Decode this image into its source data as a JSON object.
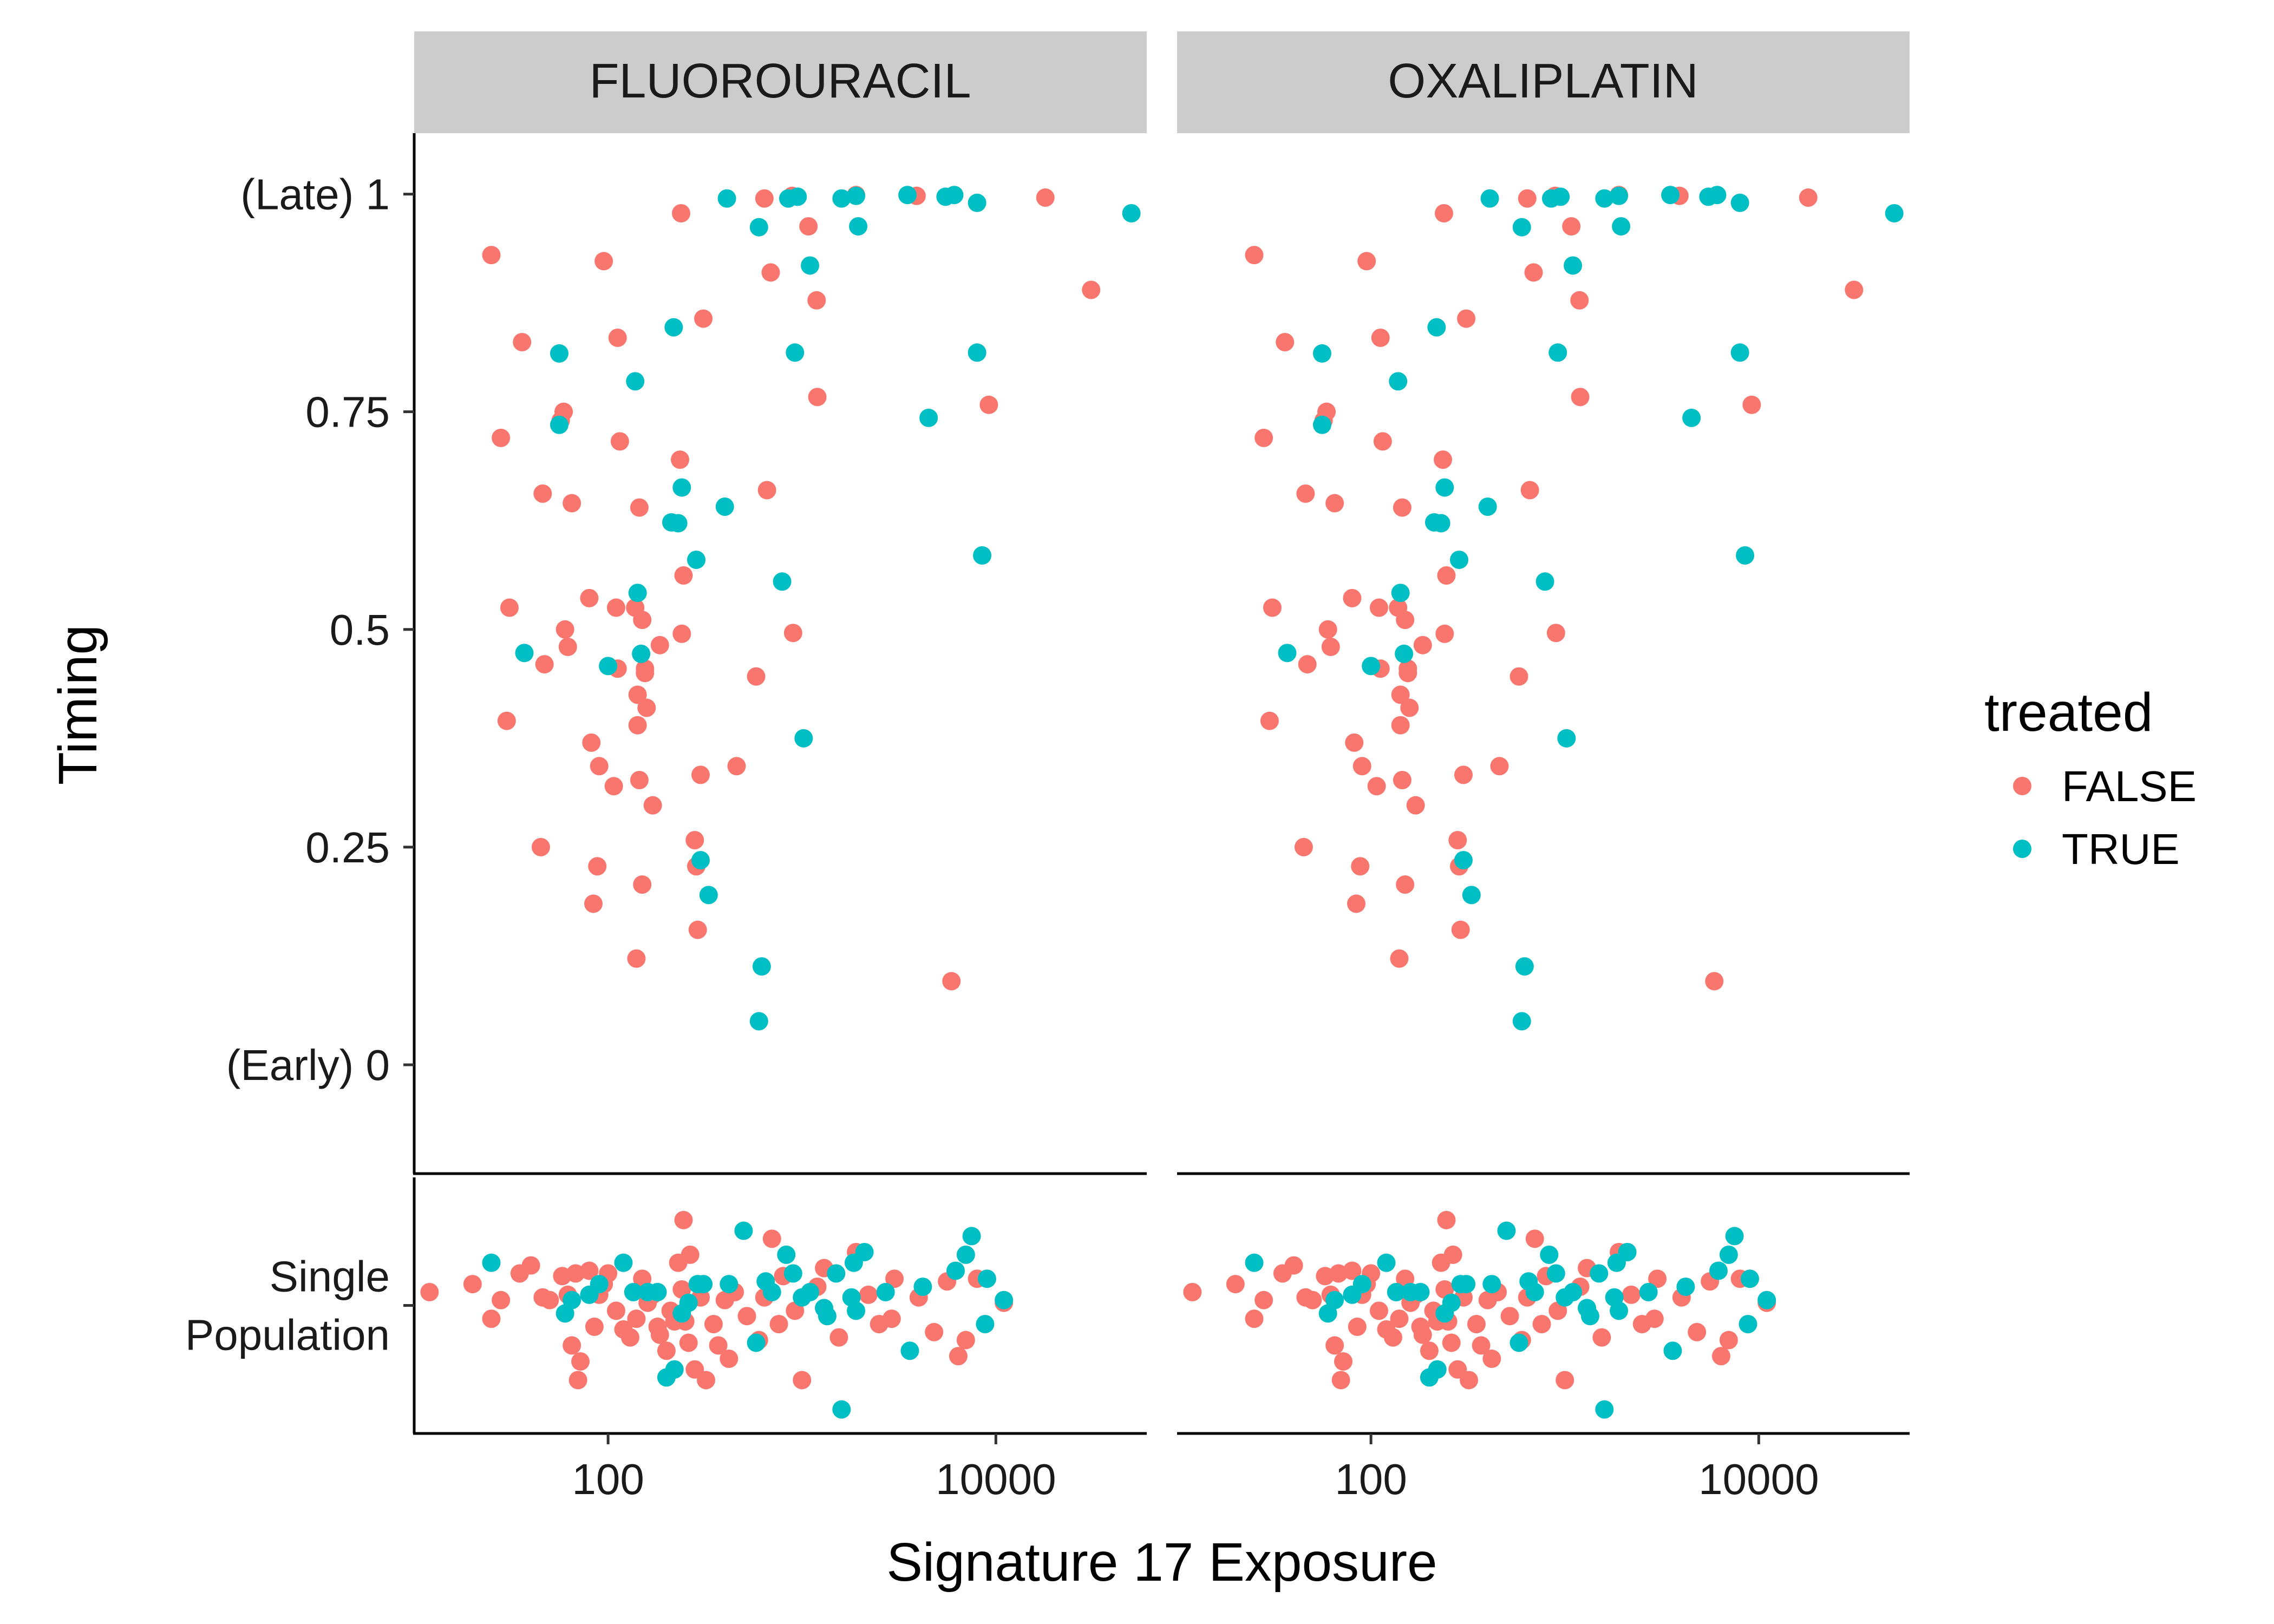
{
  "chart_data": {
    "type": "scatter",
    "facets": [
      "FLUOROURACIL",
      "OXALIPLATIN"
    ],
    "xlabel": "Signature 17 Exposure",
    "ylabel": "Timing",
    "x_scale": "log10",
    "x_ticks": [
      100,
      10000
    ],
    "x_tick_labels": [
      "100",
      "10000"
    ],
    "xlim": [
      10,
      60000
    ],
    "timing_panel": {
      "ylim": [
        -0.125,
        1.07
      ],
      "y_ticks": [
        0,
        0.25,
        0.5,
        0.75,
        1
      ],
      "y_tick_labels": [
        "(Early) 0",
        "0.25",
        "0.5",
        "0.75",
        "(Late) 1"
      ]
    },
    "single_panel": {
      "category_label": "Single\nPopulation",
      "y_center": 0,
      "ylim": [
        -0.48,
        0.48
      ]
    },
    "legend": {
      "title": "treated",
      "placement": "right",
      "entries": [
        {
          "label": "FALSE",
          "color": "#F8766D"
        },
        {
          "label": "TRUE",
          "color": "#00BFC4"
        }
      ]
    },
    "colors": {
      "FALSE": "#F8766D",
      "TRUE": "#00BFC4",
      "strip_background": "#CCCCCC"
    },
    "series": [
      {
        "name": "FALSE",
        "color": "#F8766D",
        "timing_points": [
          [
            25,
            0.93
          ],
          [
            36,
            0.83
          ],
          [
            28,
            0.72
          ],
          [
            59,
            0.75
          ],
          [
            57,
            0.74
          ],
          [
            31,
            0.525
          ],
          [
            30,
            0.395
          ],
          [
            46,
            0.656
          ],
          [
            45,
            0.25
          ],
          [
            47,
            0.46
          ],
          [
            95,
            0.923
          ],
          [
            112,
            0.835
          ],
          [
            115,
            0.716
          ],
          [
            65,
            0.645
          ],
          [
            60,
            0.5
          ],
          [
            62,
            0.48
          ],
          [
            80,
            0.536
          ],
          [
            82,
            0.37
          ],
          [
            90,
            0.343
          ],
          [
            84,
            0.185
          ],
          [
            88,
            0.228
          ],
          [
            107,
            0.32
          ],
          [
            110,
            0.525
          ],
          [
            112,
            0.455
          ],
          [
            138,
            0.525
          ],
          [
            150,
            0.511
          ],
          [
            145,
            0.64
          ],
          [
            142,
            0.39
          ],
          [
            142,
            0.425
          ],
          [
            158,
            0.41
          ],
          [
            145,
            0.327
          ],
          [
            150,
            0.207
          ],
          [
            140,
            0.122
          ],
          [
            170,
            0.298
          ],
          [
            238,
            0.978
          ],
          [
            235,
            0.695
          ],
          [
            245,
            0.562
          ],
          [
            240,
            0.495
          ],
          [
            185,
            0.482
          ],
          [
            155,
            0.455
          ],
          [
            155,
            0.45
          ],
          [
            310,
            0.857
          ],
          [
            300,
            0.333
          ],
          [
            280,
            0.258
          ],
          [
            285,
            0.228
          ],
          [
            290,
            0.155
          ],
          [
            460,
            0.343
          ],
          [
            640,
            0.995
          ],
          [
            890,
            0.998
          ],
          [
            1080,
            0.963
          ],
          [
            690,
            0.91
          ],
          [
            660,
            0.66
          ],
          [
            900,
            0.496
          ],
          [
            1190,
            0.878
          ],
          [
            1200,
            0.767
          ],
          [
            580,
            0.446
          ],
          [
            1900,
            0.999
          ],
          [
            3900,
            0.998
          ],
          [
            18000,
            0.996
          ],
          [
            31000,
            0.89
          ],
          [
            9200,
            0.758
          ],
          [
            5900,
            0.096
          ]
        ],
        "single_points": [
          [
            12,
            0.05
          ],
          [
            20,
            0.08
          ],
          [
            25,
            -0.05
          ],
          [
            28,
            0.02
          ],
          [
            35,
            0.12
          ],
          [
            40,
            0.15
          ],
          [
            46,
            0.03
          ],
          [
            50,
            0.02
          ],
          [
            58,
            0.11
          ],
          [
            62,
            0.04
          ],
          [
            65,
            -0.15
          ],
          [
            68,
            0.12
          ],
          [
            70,
            -0.28
          ],
          [
            72,
            -0.21
          ],
          [
            80,
            0.13
          ],
          [
            85,
            -0.08
          ],
          [
            90,
            0.04
          ],
          [
            95,
            0.08
          ],
          [
            100,
            0.12
          ],
          [
            110,
            -0.02
          ],
          [
            120,
            -0.09
          ],
          [
            130,
            -0.12
          ],
          [
            140,
            -0.05
          ],
          [
            150,
            0.1
          ],
          [
            160,
            0.01
          ],
          [
            170,
            0.04
          ],
          [
            180,
            -0.08
          ],
          [
            185,
            -0.11
          ],
          [
            200,
            -0.17
          ],
          [
            210,
            -0.02
          ],
          [
            220,
            -0.06
          ],
          [
            230,
            0.16
          ],
          [
            240,
            0.06
          ],
          [
            245,
            0.32
          ],
          [
            250,
            -0.06
          ],
          [
            260,
            -0.14
          ],
          [
            265,
            0.19
          ],
          [
            280,
            -0.24
          ],
          [
            300,
            0.03
          ],
          [
            320,
            -0.28
          ],
          [
            350,
            -0.07
          ],
          [
            370,
            -0.15
          ],
          [
            400,
            0.02
          ],
          [
            420,
            -0.2
          ],
          [
            450,
            0.05
          ],
          [
            520,
            -0.04
          ],
          [
            600,
            -0.13
          ],
          [
            640,
            0.03
          ],
          [
            700,
            0.25
          ],
          [
            760,
            -0.07
          ],
          [
            800,
            0.11
          ],
          [
            920,
            -0.02
          ],
          [
            1000,
            -0.28
          ],
          [
            1200,
            0.07
          ],
          [
            1300,
            0.14
          ],
          [
            1550,
            -0.12
          ],
          [
            1900,
            0.2
          ],
          [
            2200,
            0.04
          ],
          [
            2500,
            -0.07
          ],
          [
            2900,
            -0.05
          ],
          [
            3000,
            0.1
          ],
          [
            4000,
            0.03
          ],
          [
            4800,
            -0.1
          ],
          [
            5600,
            0.09
          ],
          [
            6400,
            -0.19
          ],
          [
            7000,
            -0.13
          ],
          [
            8000,
            0.1
          ],
          [
            11000,
            0.01
          ]
        ]
      },
      {
        "name": "TRUE",
        "color": "#00BFC4",
        "timing_points": [
          [
            56,
            0.817
          ],
          [
            56,
            0.735
          ],
          [
            138,
            0.785
          ],
          [
            218,
            0.847
          ],
          [
            240,
            0.663
          ],
          [
            212,
            0.623
          ],
          [
            230,
            0.622
          ],
          [
            142,
            0.542
          ],
          [
            148,
            0.472
          ],
          [
            100,
            0.458
          ],
          [
            37,
            0.473
          ],
          [
            285,
            0.58
          ],
          [
            400,
            0.641
          ],
          [
            300,
            0.235
          ],
          [
            330,
            0.195
          ],
          [
            620,
            0.113
          ],
          [
            600,
            0.05
          ],
          [
            790,
            0.555
          ],
          [
            1020,
            0.375
          ],
          [
            410,
            0.995
          ],
          [
            600,
            0.962
          ],
          [
            850,
            0.995
          ],
          [
            950,
            0.997
          ],
          [
            1100,
            0.918
          ],
          [
            920,
            0.818
          ],
          [
            1600,
            0.995
          ],
          [
            1900,
            0.998
          ],
          [
            1950,
            0.963
          ],
          [
            3500,
            0.999
          ],
          [
            5500,
            0.997
          ],
          [
            6100,
            0.999
          ],
          [
            8000,
            0.99
          ],
          [
            8000,
            0.818
          ],
          [
            4500,
            0.743
          ],
          [
            8500,
            0.585
          ],
          [
            50000,
            0.978
          ]
        ],
        "single_points": [
          [
            25,
            0.16
          ],
          [
            60,
            -0.03
          ],
          [
            65,
            0.02
          ],
          [
            80,
            0.04
          ],
          [
            90,
            0.08
          ],
          [
            120,
            0.16
          ],
          [
            135,
            0.05
          ],
          [
            160,
            0.05
          ],
          [
            180,
            0.05
          ],
          [
            200,
            -0.27
          ],
          [
            220,
            -0.24
          ],
          [
            240,
            -0.03
          ],
          [
            260,
            0.01
          ],
          [
            290,
            0.08
          ],
          [
            310,
            0.08
          ],
          [
            420,
            0.08
          ],
          [
            500,
            0.28
          ],
          [
            580,
            -0.14
          ],
          [
            650,
            0.09
          ],
          [
            700,
            0.05
          ],
          [
            830,
            0.19
          ],
          [
            900,
            0.12
          ],
          [
            1000,
            0.03
          ],
          [
            1100,
            0.05
          ],
          [
            1300,
            -0.01
          ],
          [
            1350,
            -0.04
          ],
          [
            1500,
            0.12
          ],
          [
            1600,
            -0.39
          ],
          [
            1800,
            0.03
          ],
          [
            1850,
            0.16
          ],
          [
            1900,
            -0.02
          ],
          [
            2100,
            0.2
          ],
          [
            2700,
            0.05
          ],
          [
            3600,
            -0.17
          ],
          [
            4200,
            0.07
          ],
          [
            6200,
            0.13
          ],
          [
            7000,
            0.19
          ],
          [
            7500,
            0.26
          ],
          [
            9000,
            0.1
          ],
          [
            8800,
            -0.07
          ],
          [
            11000,
            0.02
          ]
        ]
      }
    ]
  }
}
